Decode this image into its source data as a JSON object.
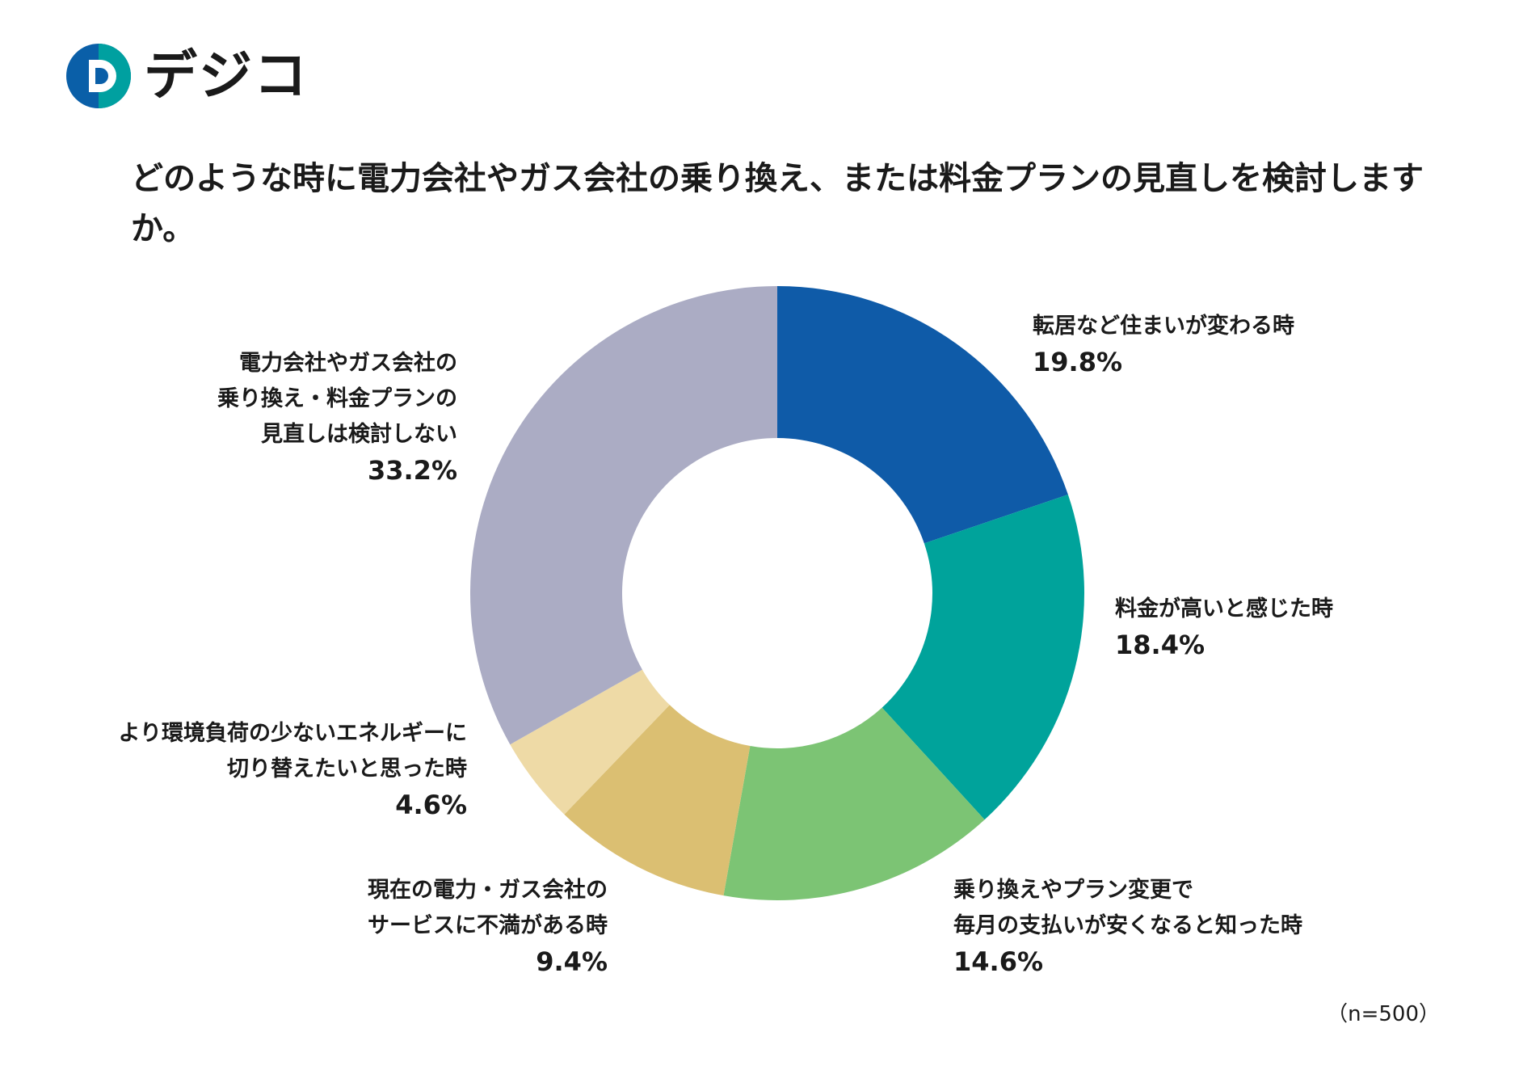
{
  "brand": {
    "name": "デジコ",
    "accent": "#0a5fa8",
    "accent2": "#00a0a0"
  },
  "title": "どのような時に電力会社やガス会社の乗り換え、または料金プランの見直しを検討しますか。",
  "note": "（n=500）",
  "chart_data": {
    "type": "pie",
    "variant": "donut",
    "title": "どのような時に電力会社やガス会社の乗り換え、または料金プランの見直しを検討しますか。",
    "sample_size": "（n=500）",
    "slices": [
      {
        "label_lines": [
          "転居など住まいが変わる時"
        ],
        "value": 19.8,
        "value_label": "19.8%",
        "color": "#0f5ba8",
        "side": "right"
      },
      {
        "label_lines": [
          "料金が高いと感じた時"
        ],
        "value": 18.4,
        "value_label": "18.4%",
        "color": "#00a39b",
        "side": "right"
      },
      {
        "label_lines": [
          "乗り換えやプラン変更で",
          "毎月の支払いが安くなると知った時"
        ],
        "value": 14.6,
        "value_label": "14.6%",
        "color": "#7cc474",
        "side": "right"
      },
      {
        "label_lines": [
          "現在の電力・ガス会社の",
          "サービスに不満がある時"
        ],
        "value": 9.4,
        "value_label": "9.4%",
        "color": "#dbbf72",
        "side": "left"
      },
      {
        "label_lines": [
          "より環境負荷の少ないエネルギーに",
          "切り替えたいと思った時"
        ],
        "value": 4.6,
        "value_label": "4.6%",
        "color": "#eedaa6",
        "side": "left"
      },
      {
        "label_lines": [
          "電力会社やガス会社の",
          "乗り換え・料金プランの",
          "見直しは検討しない"
        ],
        "value": 33.2,
        "value_label": "33.2%",
        "color": "#abacc4",
        "side": "left"
      }
    ]
  }
}
